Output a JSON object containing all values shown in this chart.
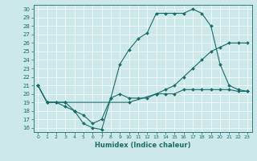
{
  "xlabel": "Humidex (Indice chaleur)",
  "bg_color": "#cce8e8",
  "line_color": "#1a6b6b",
  "xlim": [
    -0.5,
    23.5
  ],
  "ylim": [
    15.5,
    30.5
  ],
  "xticks": [
    0,
    1,
    2,
    3,
    4,
    5,
    6,
    7,
    8,
    9,
    10,
    11,
    12,
    13,
    14,
    15,
    16,
    17,
    18,
    19,
    20,
    21,
    22,
    23
  ],
  "yticks": [
    16,
    17,
    18,
    19,
    20,
    21,
    22,
    23,
    24,
    25,
    26,
    27,
    28,
    29,
    30
  ],
  "line1_x": [
    0,
    1,
    2,
    3,
    4,
    5,
    6,
    7,
    8,
    9,
    10,
    11,
    12,
    13,
    14,
    15,
    16,
    17,
    18,
    19,
    20,
    21,
    22,
    23
  ],
  "line1_y": [
    21,
    19,
    19,
    18.5,
    18,
    16.5,
    16,
    15.8,
    19.5,
    23.5,
    25.2,
    26.5,
    27.2,
    29.5,
    29.5,
    29.5,
    29.5,
    30,
    29.5,
    28,
    23.5,
    21,
    20.5,
    20.3
  ],
  "line2_x": [
    0,
    1,
    3,
    10,
    13,
    14,
    15,
    16,
    17,
    18,
    19,
    20,
    21,
    22,
    23
  ],
  "line2_y": [
    21,
    19,
    19,
    19,
    20,
    20.5,
    21,
    22,
    23,
    24,
    25,
    25.5,
    26,
    26,
    26
  ],
  "line3_x": [
    0,
    1,
    2,
    3,
    4,
    5,
    6,
    7,
    8,
    9,
    10,
    11,
    12,
    13,
    14,
    15,
    16,
    17,
    18,
    19,
    20,
    21,
    22,
    23
  ],
  "line3_y": [
    21,
    19,
    19,
    19,
    18,
    17.5,
    16.5,
    17,
    19.5,
    20,
    19.5,
    19.5,
    19.5,
    20,
    20,
    20,
    20.5,
    20.5,
    20.5,
    20.5,
    20.5,
    20.5,
    20.3,
    20.3
  ],
  "grid_color": "#ffffff",
  "marker": "D",
  "markersize": 2.0,
  "linewidth": 0.8
}
